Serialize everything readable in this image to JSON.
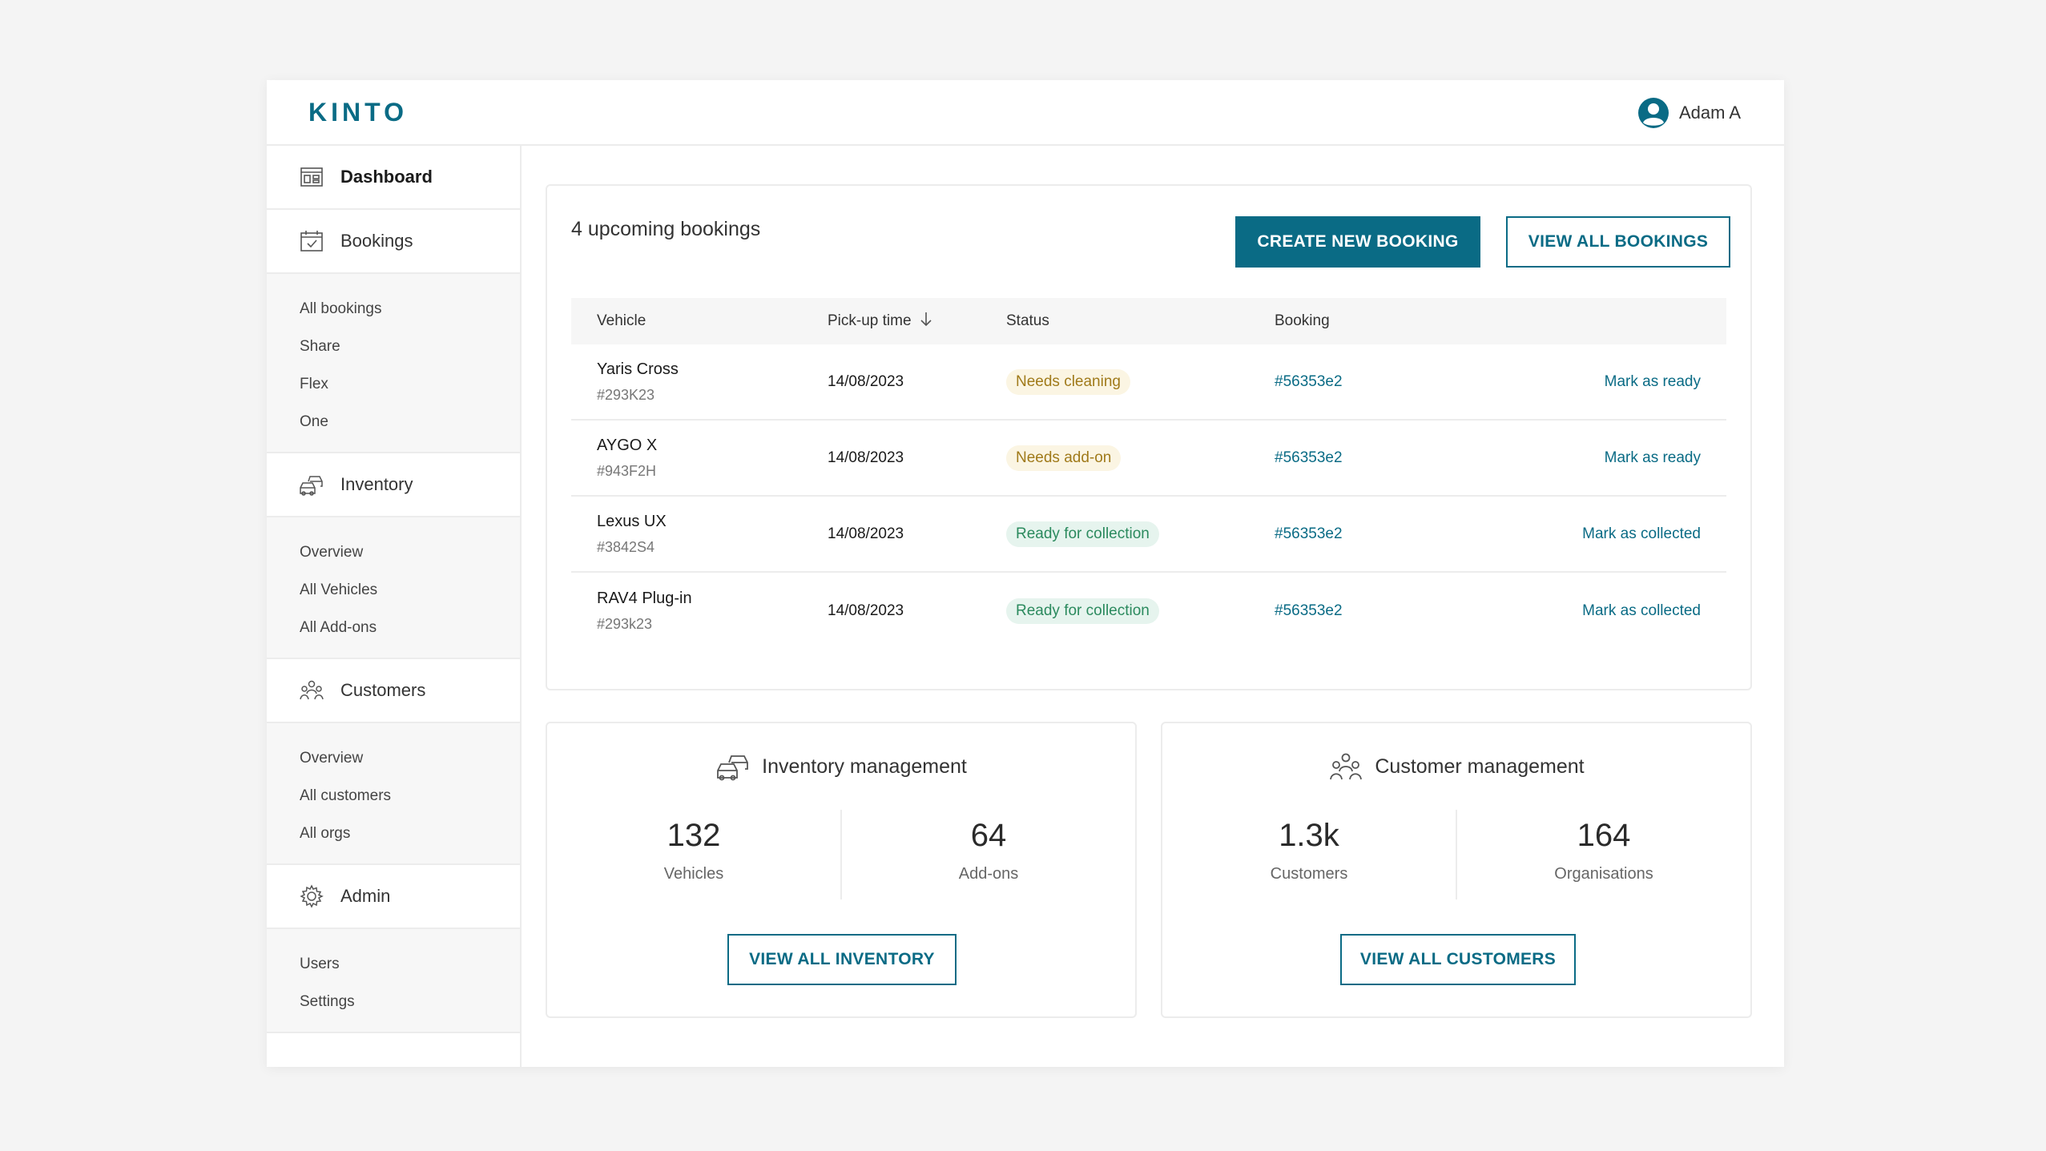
{
  "brand": {
    "logo": "KINTO",
    "accent": "#0a6b85"
  },
  "user": {
    "name": "Adam A",
    "icon": "user-avatar-icon"
  },
  "sidebar": {
    "sections": [
      {
        "label": "Dashboard",
        "icon": "dashboard-icon",
        "active": true,
        "items": []
      },
      {
        "label": "Bookings",
        "icon": "calendar-icon",
        "items": [
          "All bookings",
          "Share",
          "Flex",
          "One"
        ]
      },
      {
        "label": "Inventory",
        "icon": "cars-icon",
        "items": [
          "Overview",
          "All Vehicles",
          "All Add-ons"
        ]
      },
      {
        "label": "Customers",
        "icon": "people-icon",
        "items": [
          "Overview",
          "All customers",
          "All orgs"
        ]
      },
      {
        "label": "Admin",
        "icon": "gear-icon",
        "items": [
          "Users",
          "Settings"
        ]
      }
    ]
  },
  "bookings": {
    "title": "4 upcoming bookings",
    "create_label": "CREATE NEW BOOKING",
    "view_all_label": "VIEW ALL BOOKINGS",
    "columns": [
      "Vehicle",
      "Pick-up time",
      "Status",
      "Booking"
    ],
    "rows": [
      {
        "vehicle": "Yaris Cross",
        "plate": "#293K23",
        "time": "14/08/2023",
        "status": "Needs cleaning",
        "status_type": "warn",
        "booking": "#56353e2",
        "action": "Mark as ready"
      },
      {
        "vehicle": "AYGO X",
        "plate": "#943F2H",
        "time": "14/08/2023",
        "status": "Needs add-on",
        "status_type": "warn",
        "booking": "#56353e2",
        "action": "Mark as ready"
      },
      {
        "vehicle": "Lexus UX",
        "plate": "#3842S4",
        "time": "14/08/2023",
        "status": "Ready for collection",
        "status_type": "ok",
        "booking": "#56353e2",
        "action": "Mark as collected"
      },
      {
        "vehicle": "RAV4 Plug-in",
        "plate": "#293k23",
        "time": "14/08/2023",
        "status": "Ready for collection",
        "status_type": "ok",
        "booking": "#56353e2",
        "action": "Mark as collected"
      }
    ]
  },
  "inventory": {
    "title": "Inventory management",
    "stats": [
      {
        "value": "132",
        "label": "Vehicles"
      },
      {
        "value": "64",
        "label": "Add-ons"
      }
    ],
    "button": "VIEW ALL INVENTORY"
  },
  "customers": {
    "title": "Customer management",
    "stats": [
      {
        "value": "1.3k",
        "label": "Customers"
      },
      {
        "value": "164",
        "label": "Organisations"
      }
    ],
    "button": "VIEW ALL CUSTOMERS"
  }
}
